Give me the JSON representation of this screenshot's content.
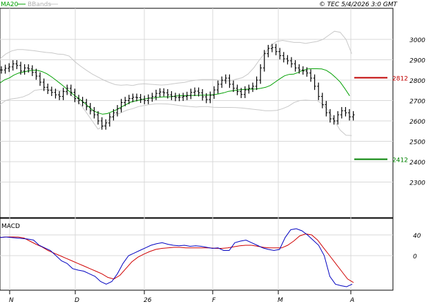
{
  "header": {
    "indicator_ma": "MA20",
    "indicator_bb": "BBands",
    "copyright": "© TEC 5/4/2026 3:0 GMT"
  },
  "colors": {
    "candles": "#000000",
    "ma": "#00a000",
    "bands": "#c8c8c8",
    "resistance": "#c00000",
    "support": "#008000",
    "macd": "#0000c0",
    "signal": "#d00000",
    "grid": "#d8d8d8"
  },
  "chart_data": [
    {
      "type": "ohlc",
      "title": "",
      "x_tick_labels": [
        "N",
        "D",
        "26",
        "F",
        "M",
        "A"
      ],
      "y_tick_labels": [
        "3000",
        "2900",
        "2800",
        "2700",
        "2600",
        "2500",
        "2400",
        "2300"
      ],
      "ylim": [
        2150,
        3060
      ],
      "levels": [
        {
          "name": "resistance",
          "value": 2812,
          "label": "2812"
        },
        {
          "name": "support",
          "value": 2412,
          "label": "2412"
        }
      ],
      "series": [
        {
          "name": "price",
          "values": [
            2850,
            2858,
            2865,
            2880,
            2872,
            2845,
            2860,
            2855,
            2838,
            2820,
            2790,
            2765,
            2750,
            2740,
            2728,
            2720,
            2745,
            2760,
            2740,
            2710,
            2700,
            2690,
            2670,
            2650,
            2630,
            2600,
            2575,
            2590,
            2620,
            2640,
            2660,
            2690,
            2700,
            2710,
            2716,
            2714,
            2706,
            2700,
            2712,
            2720,
            2735,
            2742,
            2738,
            2728,
            2720,
            2715,
            2716,
            2720,
            2725,
            2740,
            2746,
            2738,
            2718,
            2705,
            2726,
            2752,
            2780,
            2800,
            2810,
            2780,
            2760,
            2744,
            2730,
            2752,
            2760,
            2770,
            2800,
            2860,
            2930,
            2955,
            2960,
            2940,
            2920,
            2905,
            2895,
            2880,
            2860,
            2850,
            2845,
            2835,
            2810,
            2770,
            2720,
            2680,
            2640,
            2610,
            2600,
            2630,
            2650,
            2640,
            2620,
            2630
          ]
        },
        {
          "name": "MA20",
          "values": [
            2786,
            2802,
            2811,
            2825,
            2835,
            2840,
            2845,
            2848,
            2848,
            2842,
            2832,
            2817,
            2800,
            2782,
            2763,
            2742,
            2725,
            2708,
            2690,
            2670,
            2650,
            2640,
            2633,
            2636,
            2645,
            2655,
            2668,
            2680,
            2692,
            2698,
            2703,
            2707,
            2712,
            2713,
            2716,
            2718,
            2718,
            2720,
            2723,
            2724,
            2724,
            2725,
            2725,
            2726,
            2726,
            2727,
            2729,
            2733,
            2738,
            2745,
            2748,
            2752,
            2754,
            2756,
            2756,
            2757,
            2760,
            2765,
            2774,
            2790,
            2806,
            2821,
            2828,
            2830,
            2838,
            2848,
            2855,
            2856,
            2856,
            2855,
            2848,
            2833,
            2813,
            2790,
            2758,
            2723
          ]
        },
        {
          "name": "BB upper",
          "values": [
            2905,
            2928,
            2943,
            2950,
            2950,
            2947,
            2944,
            2940,
            2936,
            2934,
            2928,
            2926,
            2918,
            2890,
            2868,
            2848,
            2830,
            2815,
            2800,
            2788,
            2778,
            2775,
            2777,
            2774,
            2780,
            2782,
            2780,
            2778,
            2776,
            2778,
            2782,
            2786,
            2789,
            2796,
            2800,
            2803,
            2803,
            2803,
            2800,
            2795,
            2797,
            2805,
            2812,
            2830,
            2860,
            2900,
            2935,
            2970,
            2990,
            2995,
            2990,
            2985,
            2985,
            2980,
            2985,
            2990,
            3000,
            3020,
            3040,
            3035,
            3000,
            2930
          ]
        },
        {
          "name": "BB lower",
          "values": [
            2680,
            2700,
            2708,
            2712,
            2718,
            2730,
            2750,
            2754,
            2755,
            2752,
            2750,
            2745,
            2735,
            2710,
            2680,
            2640,
            2600,
            2560,
            2575,
            2610,
            2630,
            2640,
            2653,
            2660,
            2670,
            2676,
            2680,
            2684,
            2684,
            2683,
            2680,
            2676,
            2673,
            2670,
            2668,
            2670,
            2670,
            2667,
            2666,
            2666,
            2666,
            2665,
            2663,
            2660,
            2657,
            2654,
            2650,
            2650,
            2652,
            2660,
            2672,
            2690,
            2700,
            2702,
            2700,
            2700,
            2680,
            2650,
            2600,
            2555,
            2530,
            2528
          ]
        }
      ]
    },
    {
      "type": "line",
      "title": "MACD",
      "y_tick_labels": [
        "40",
        "0"
      ],
      "ylim": [
        -70,
        70
      ],
      "series": [
        {
          "name": "MACD",
          "values": [
            35,
            36,
            35,
            34,
            33,
            32,
            30,
            20,
            15,
            10,
            0,
            -10,
            -15,
            -25,
            -28,
            -30,
            -35,
            -40,
            -50,
            -55,
            -50,
            -35,
            -15,
            0,
            5,
            10,
            15,
            20,
            23,
            25,
            22,
            20,
            19,
            20,
            18,
            19,
            18,
            16,
            14,
            15,
            10,
            10,
            25,
            28,
            30,
            25,
            20,
            15,
            12,
            10,
            12,
            35,
            50,
            52,
            48,
            40,
            30,
            20,
            0,
            -40,
            -55,
            -58,
            -60,
            -55
          ]
        },
        {
          "name": "Signal",
          "values": [
            35,
            36,
            36,
            36,
            34,
            28,
            22,
            17,
            10,
            5,
            0,
            -5,
            -10,
            -15,
            -20,
            -25,
            -30,
            -35,
            -42,
            -45,
            -38,
            -25,
            -12,
            -3,
            3,
            8,
            12,
            14,
            15,
            16,
            16,
            15,
            15,
            15,
            15,
            15,
            14,
            14,
            15,
            17,
            19,
            20,
            20,
            18,
            16,
            15,
            15,
            15,
            20,
            28,
            38,
            42,
            40,
            30,
            15,
            0,
            -15,
            -30,
            -45,
            -52
          ]
        }
      ]
    }
  ]
}
